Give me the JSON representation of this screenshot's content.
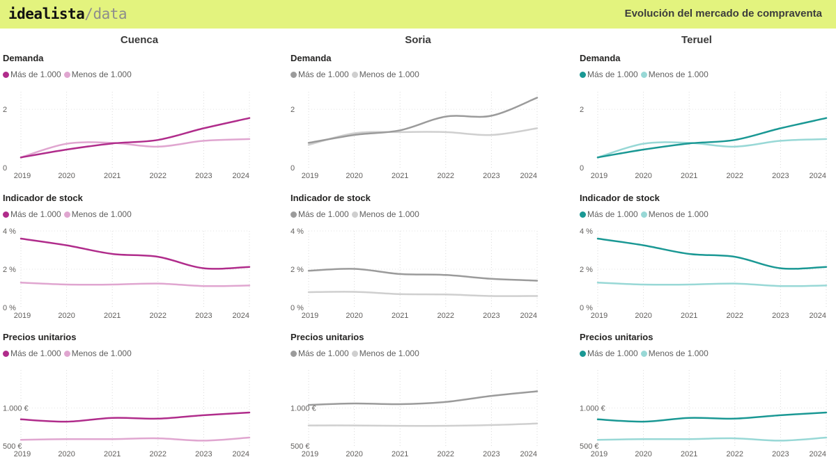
{
  "header": {
    "logo_brand": "idealista",
    "logo_sub": "/data",
    "title": "Evolución del mercado de compraventa",
    "background": "#e3f37e"
  },
  "columns": [
    {
      "name": "Cuenca",
      "colors": {
        "dark": "#b02c8b",
        "light": "#e0a6d0"
      }
    },
    {
      "name": "Soria",
      "colors": {
        "dark": "#9b9b9b",
        "light": "#cfcfcf"
      }
    },
    {
      "name": "Teruel",
      "colors": {
        "dark": "#1a9894",
        "light": "#98d8d6"
      }
    }
  ],
  "legend": {
    "series_1": "Más de 1.000",
    "series_2": "Menos de 1.000"
  },
  "chart_data": [
    {
      "type": "line",
      "column": "Cuenca",
      "title": "Demanda",
      "x": [
        2019,
        2020,
        2021,
        2022,
        2023,
        2024
      ],
      "ylim": [
        0,
        2.6
      ],
      "yticks": [
        0,
        2
      ],
      "ytick_labels": [
        "0",
        "2"
      ],
      "series": [
        {
          "name": "Más de 1.000",
          "values": [
            0.35,
            0.62,
            0.83,
            0.95,
            1.35,
            1.7
          ]
        },
        {
          "name": "Menos de 1.000",
          "values": [
            0.35,
            0.82,
            0.85,
            0.72,
            0.92,
            0.98
          ]
        }
      ]
    },
    {
      "type": "line",
      "column": "Cuenca",
      "title": "Indicador de stock",
      "x": [
        2019,
        2020,
        2021,
        2022,
        2023,
        2024
      ],
      "ylim": [
        0,
        4
      ],
      "yticks": [
        0,
        2,
        4
      ],
      "ytick_labels": [
        "0 %",
        "2 %",
        "4 %"
      ],
      "series": [
        {
          "name": "Más de 1.000",
          "values": [
            3.6,
            3.25,
            2.8,
            2.65,
            2.05,
            2.12
          ]
        },
        {
          "name": "Menos de 1.000",
          "values": [
            1.3,
            1.2,
            1.2,
            1.25,
            1.12,
            1.15
          ]
        }
      ]
    },
    {
      "type": "line",
      "column": "Cuenca",
      "title": "Precios unitarios",
      "x": [
        2019,
        2020,
        2021,
        2022,
        2023,
        2024
      ],
      "ylim": [
        500,
        1500
      ],
      "yticks": [
        500,
        1000
      ],
      "ytick_labels": [
        "500 €",
        "1.000 €"
      ],
      "series": [
        {
          "name": "Más de 1.000",
          "values": [
            850,
            820,
            870,
            860,
            905,
            940
          ]
        },
        {
          "name": "Menos de 1.000",
          "values": [
            580,
            590,
            590,
            600,
            570,
            610
          ]
        }
      ]
    },
    {
      "type": "line",
      "column": "Soria",
      "title": "Demanda",
      "x": [
        2019,
        2020,
        2021,
        2022,
        2023,
        2024
      ],
      "ylim": [
        0,
        2.6
      ],
      "yticks": [
        0,
        2
      ],
      "ytick_labels": [
        "0",
        "2"
      ],
      "series": [
        {
          "name": "Más de 1.000",
          "values": [
            0.85,
            1.12,
            1.28,
            1.75,
            1.78,
            2.4
          ]
        },
        {
          "name": "Menos de 1.000",
          "values": [
            0.78,
            1.18,
            1.22,
            1.22,
            1.12,
            1.35
          ]
        }
      ]
    },
    {
      "type": "line",
      "column": "Soria",
      "title": "Indicador de stock",
      "x": [
        2019,
        2020,
        2021,
        2022,
        2023,
        2024
      ],
      "ylim": [
        0,
        4
      ],
      "yticks": [
        0,
        2,
        4
      ],
      "ytick_labels": [
        "0 %",
        "2 %",
        "4 %"
      ],
      "series": [
        {
          "name": "Más de 1.000",
          "values": [
            1.92,
            2.02,
            1.75,
            1.7,
            1.5,
            1.4
          ]
        },
        {
          "name": "Menos de 1.000",
          "values": [
            0.8,
            0.82,
            0.7,
            0.68,
            0.6,
            0.6
          ]
        }
      ]
    },
    {
      "type": "line",
      "column": "Soria",
      "title": "Precios unitarios",
      "x": [
        2019,
        2020,
        2021,
        2022,
        2023,
        2024
      ],
      "ylim": [
        500,
        1500
      ],
      "yticks": [
        500,
        1000
      ],
      "ytick_labels": [
        "500 €",
        "1.000 €"
      ],
      "series": [
        {
          "name": "Más de 1.000",
          "values": [
            1040,
            1060,
            1050,
            1080,
            1160,
            1220
          ]
        },
        {
          "name": "Menos de 1.000",
          "values": [
            770,
            770,
            765,
            765,
            775,
            795
          ]
        }
      ]
    },
    {
      "type": "line",
      "column": "Teruel",
      "title": "Demanda",
      "x": [
        2019,
        2020,
        2021,
        2022,
        2023,
        2024
      ],
      "ylim": [
        0,
        2.6
      ],
      "yticks": [
        0,
        2
      ],
      "ytick_labels": [
        "0",
        "2"
      ],
      "series": [
        {
          "name": "Más de 1.000",
          "values": [
            0.35,
            0.62,
            0.83,
            0.95,
            1.35,
            1.7
          ]
        },
        {
          "name": "Menos de 1.000",
          "values": [
            0.35,
            0.82,
            0.85,
            0.72,
            0.92,
            0.98
          ]
        }
      ]
    },
    {
      "type": "line",
      "column": "Teruel",
      "title": "Indicador de stock",
      "x": [
        2019,
        2020,
        2021,
        2022,
        2023,
        2024
      ],
      "ylim": [
        0,
        4
      ],
      "yticks": [
        0,
        2,
        4
      ],
      "ytick_labels": [
        "0 %",
        "2 %",
        "4 %"
      ],
      "series": [
        {
          "name": "Más de 1.000",
          "values": [
            3.6,
            3.25,
            2.8,
            2.65,
            2.05,
            2.12
          ]
        },
        {
          "name": "Menos de 1.000",
          "values": [
            1.3,
            1.2,
            1.2,
            1.25,
            1.12,
            1.15
          ]
        }
      ]
    },
    {
      "type": "line",
      "column": "Teruel",
      "title": "Precios unitarios",
      "x": [
        2019,
        2020,
        2021,
        2022,
        2023,
        2024
      ],
      "ylim": [
        500,
        1500
      ],
      "yticks": [
        500,
        1000
      ],
      "ytick_labels": [
        "500 €",
        "1.000 €"
      ],
      "series": [
        {
          "name": "Más de 1.000",
          "values": [
            850,
            820,
            870,
            860,
            905,
            940
          ]
        },
        {
          "name": "Menos de 1.000",
          "values": [
            580,
            590,
            590,
            600,
            570,
            610
          ]
        }
      ]
    }
  ]
}
